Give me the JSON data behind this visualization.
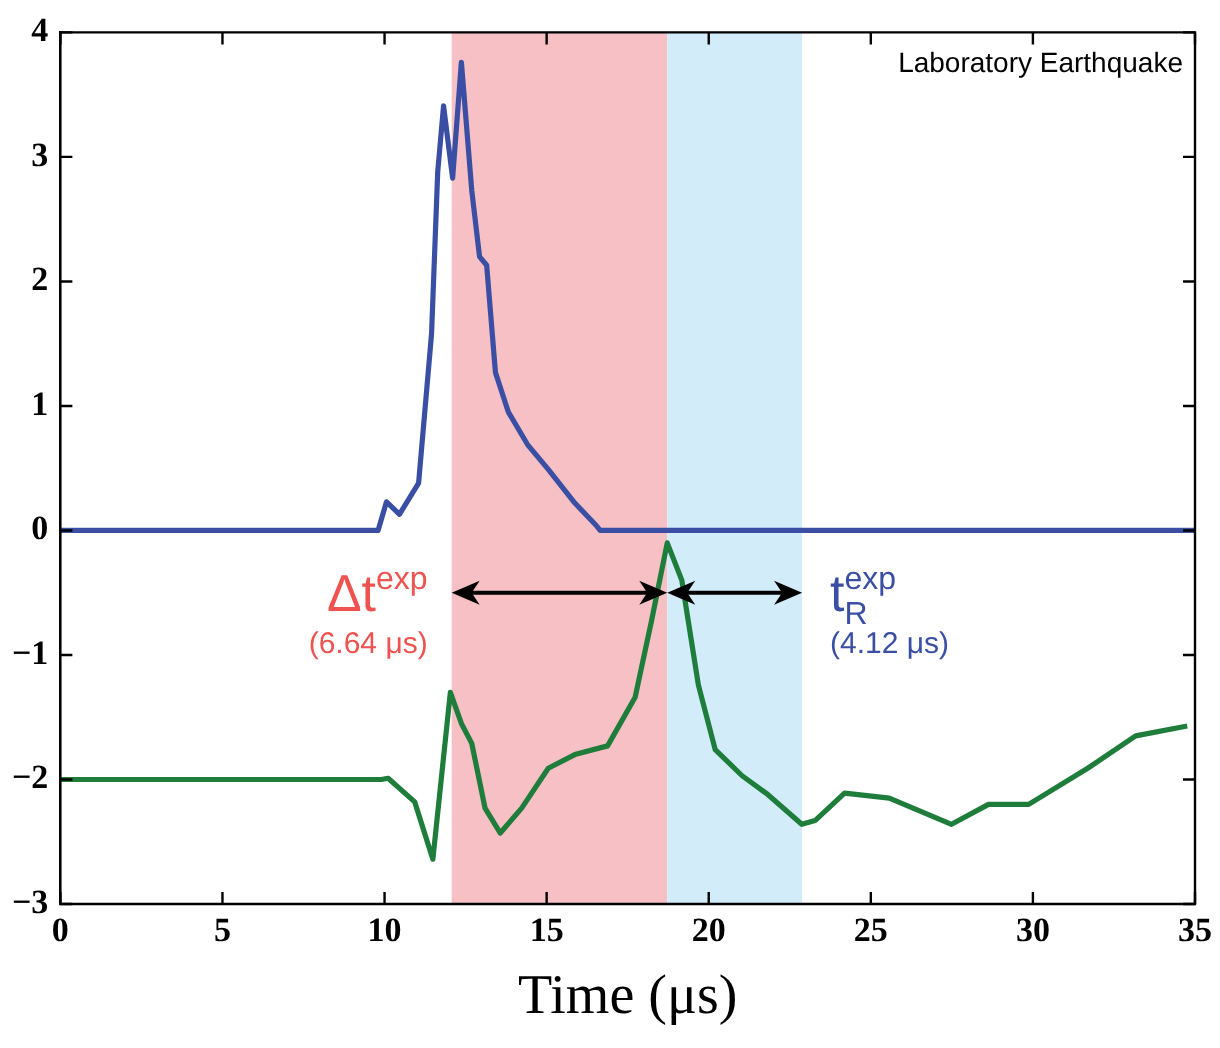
{
  "chart_data": {
    "type": "line",
    "xlabel": "Time (μs)",
    "xlim": [
      0,
      35
    ],
    "xticks": [
      0,
      5,
      10,
      15,
      20,
      25,
      30,
      35
    ],
    "ylim": [
      -3,
      4
    ],
    "yticks": [
      -3,
      -2,
      -1,
      0,
      1,
      2,
      3,
      4
    ],
    "grid": false,
    "legend": false,
    "series": [
      {
        "color": "#3a4fa3",
        "x": [
          0,
          9.8,
          10.06,
          10.46,
          11.05,
          11.45,
          11.64,
          11.82,
          12.1,
          12.37,
          12.69,
          12.93,
          13.15,
          13.42,
          13.82,
          14.41,
          15.05,
          15.87,
          16.53,
          16.65,
          35
        ],
        "values": [
          0,
          0,
          0.23,
          0.13,
          0.38,
          1.58,
          2.88,
          3.41,
          2.83,
          3.76,
          2.73,
          2.2,
          2.13,
          1.27,
          0.95,
          0.69,
          0.49,
          0.22,
          0.04,
          0,
          0
        ]
      },
      {
        "color": "#1e7d3a",
        "x": [
          0,
          9.9,
          10.11,
          10.93,
          11.49,
          11.74,
          12.03,
          12.37,
          12.69,
          13.1,
          13.57,
          14.23,
          15.05,
          15.87,
          16.88,
          17.73,
          18.24,
          18.72,
          19.17,
          19.68,
          20.2,
          21.03,
          21.82,
          22.87,
          23.28,
          24.19,
          25.57,
          27.49,
          28.63,
          29.87,
          31.69,
          33.17,
          34.76
        ],
        "values": [
          -2,
          -2,
          -1.99,
          -2.18,
          -2.64,
          -2.02,
          -1.3,
          -1.55,
          -1.71,
          -2.23,
          -2.43,
          -2.23,
          -1.91,
          -1.8,
          -1.73,
          -1.34,
          -0.72,
          -0.1,
          -0.4,
          -1.24,
          -1.76,
          -1.97,
          -2.12,
          -2.36,
          -2.33,
          -2.11,
          -2.15,
          -2.36,
          -2.2,
          -2.2,
          -1.91,
          -1.65,
          -1.57
        ]
      }
    ],
    "bands": [
      {
        "axis": "x",
        "from": 12.07,
        "to": 18.72,
        "color": "#f7c0c5",
        "label": "Δt$^{exp}$\n(6.64 μs)"
      },
      {
        "axis": "x",
        "from": 18.72,
        "to": 22.88,
        "color": "#d2ecfa",
        "label": "t$_{R}$$^{exp}$\n(4.12 μs)"
      }
    ],
    "annotations": [
      "Laboratory Earthquake"
    ]
  }
}
